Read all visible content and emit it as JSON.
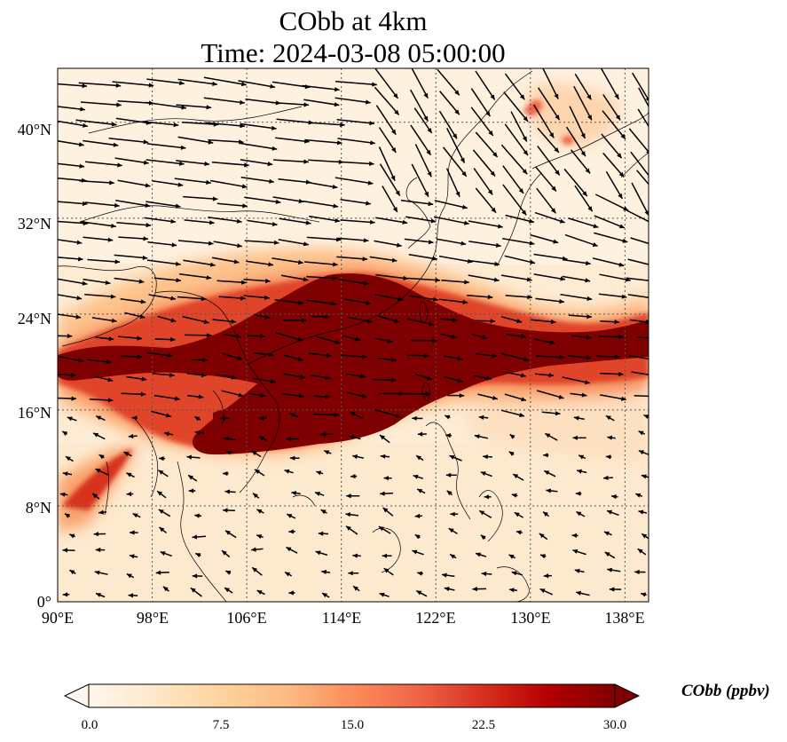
{
  "title": {
    "line1": "CObb at 4km",
    "line2": "Time: 2024-03-08 05:00:00"
  },
  "map": {
    "lon_range": [
      90,
      140
    ],
    "lat_range": [
      0,
      44.5
    ],
    "lon_ticks": [
      "90°E",
      "98°E",
      "106°E",
      "114°E",
      "122°E",
      "130°E",
      "138°E"
    ],
    "lat_ticks": [
      "0°",
      "8°N",
      "16°N",
      "24°N",
      "32°N",
      "40°N"
    ],
    "gridlines": "dotted",
    "wind_vectors": "shown",
    "coastlines": "shown"
  },
  "colorbar": {
    "label": "CObb (ppbv)",
    "ticks": [
      "0.0",
      "7.5",
      "15.0",
      "22.5",
      "30.0"
    ],
    "min": 0,
    "max": 30,
    "extend": "both",
    "colormap": "OrRd",
    "colors": [
      "#fff7ec",
      "#fee8c8",
      "#fdd49e",
      "#fdbb84",
      "#fc8d59",
      "#ef6548",
      "#d7301f",
      "#b30000",
      "#7f0000"
    ]
  }
}
